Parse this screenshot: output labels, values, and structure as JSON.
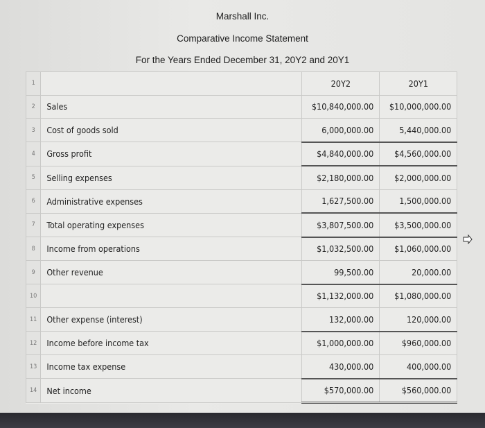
{
  "header": {
    "company": "Marshall Inc.",
    "title": "Comparative Income Statement",
    "period": "For the Years Ended December 31, 20Y2 and 20Y1"
  },
  "columns": [
    "20Y2",
    "20Y1"
  ],
  "rows": [
    {
      "num": "1",
      "label": "",
      "y2": "20Y2",
      "y1": "20Y1"
    },
    {
      "num": "2",
      "label": "Sales",
      "y2": "$10,840,000.00",
      "y1": "$10,000,000.00"
    },
    {
      "num": "3",
      "label": "Cost of goods sold",
      "y2": "6,000,000.00",
      "y1": "5,440,000.00"
    },
    {
      "num": "4",
      "label": "Gross profit",
      "y2": "$4,840,000.00",
      "y1": "$4,560,000.00"
    },
    {
      "num": "5",
      "label": "Selling expenses",
      "y2": "$2,180,000.00",
      "y1": "$2,000,000.00"
    },
    {
      "num": "6",
      "label": "Administrative expenses",
      "y2": "1,627,500.00",
      "y1": "1,500,000.00"
    },
    {
      "num": "7",
      "label": "Total operating expenses",
      "y2": "$3,807,500.00",
      "y1": "$3,500,000.00"
    },
    {
      "num": "8",
      "label": "Income from operations",
      "y2": "$1,032,500.00",
      "y1": "$1,060,000.00"
    },
    {
      "num": "9",
      "label": "Other revenue",
      "y2": "99,500.00",
      "y1": "20,000.00"
    },
    {
      "num": "10",
      "label": "",
      "y2": "$1,132,000.00",
      "y1": "$1,080,000.00"
    },
    {
      "num": "11",
      "label": "Other expense (interest)",
      "y2": "132,000.00",
      "y1": "120,000.00"
    },
    {
      "num": "12",
      "label": "Income before income tax",
      "y2": "$1,000,000.00",
      "y1": "$960,000.00"
    },
    {
      "num": "13",
      "label": "Income tax expense",
      "y2": "430,000.00",
      "y1": "400,000.00"
    },
    {
      "num": "14",
      "label": "Net income",
      "y2": "$570,000.00",
      "y1": "$560,000.00"
    }
  ]
}
